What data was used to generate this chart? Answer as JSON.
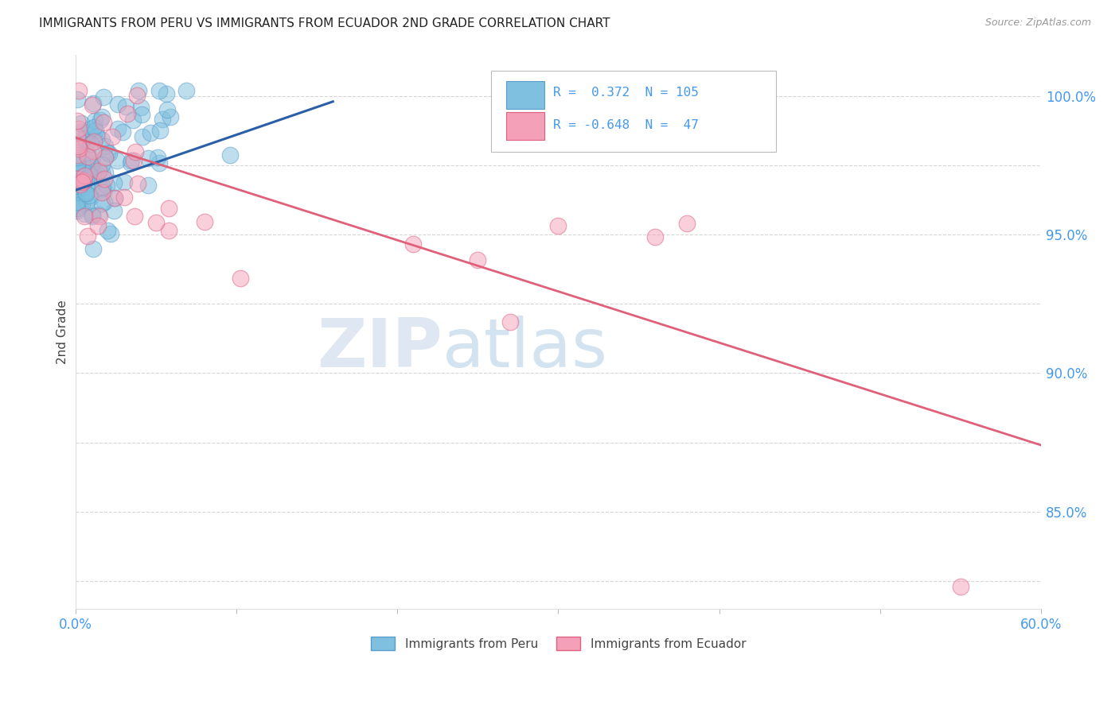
{
  "title": "IMMIGRANTS FROM PERU VS IMMIGRANTS FROM ECUADOR 2ND GRADE CORRELATION CHART",
  "source": "Source: ZipAtlas.com",
  "ylabel": "2nd Grade",
  "ytick_labels": [
    "100.0%",
    "95.0%",
    "90.0%",
    "85.0%"
  ],
  "ytick_values": [
    1.0,
    0.95,
    0.9,
    0.85
  ],
  "xmin": 0.0,
  "xmax": 0.6,
  "ymin": 0.815,
  "ymax": 1.015,
  "peru_color": "#7fbfdf",
  "peru_color_edge": "#5a9ec9",
  "ecuador_color": "#f4a0b8",
  "ecuador_color_edge": "#e06080",
  "peru_R": 0.372,
  "peru_N": 105,
  "ecuador_R": -0.648,
  "ecuador_N": 47,
  "peru_line_color": "#2a5fa8",
  "ecuador_line_color": "#e0607a",
  "watermark_zip": "ZIP",
  "watermark_atlas": "atlas",
  "background_color": "#ffffff",
  "grid_color": "#cccccc",
  "title_color": "#222222",
  "axis_label_color": "#444444",
  "tick_color": "#4499ee",
  "legend_text_color": "#4499ee",
  "peru_line_x": [
    0.0,
    0.16
  ],
  "peru_line_y": [
    0.966,
    0.998
  ],
  "ecuador_line_x": [
    0.0,
    0.6
  ],
  "ecuador_line_y": [
    0.985,
    0.874
  ]
}
